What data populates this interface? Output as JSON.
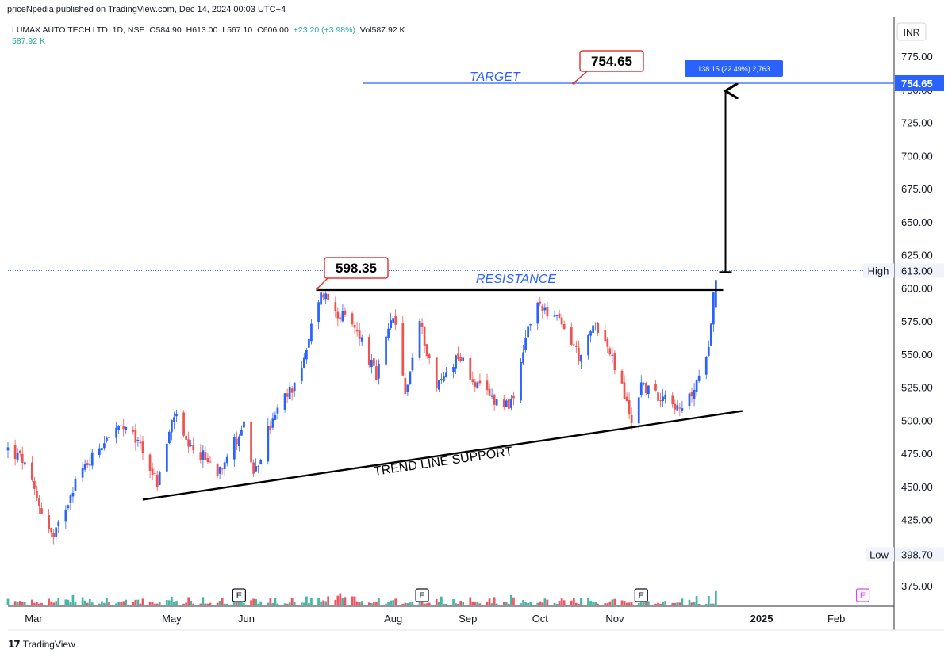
{
  "header": {
    "published": "priceNpedia published on TradingView.com, Dec 14, 2024 00:03 UTC+4"
  },
  "legend": {
    "symbol": "LUMAX AUTO TECH LTD, 1D, NSE",
    "open": "O584.90",
    "high": "H613.00",
    "low": "L567.10",
    "close": "C606.00",
    "change": "+23.20 (+3.98%)",
    "volume": "Vol587.92 K",
    "volume_value": "587.92 K"
  },
  "footer": {
    "brand": "TradingView"
  },
  "colors": {
    "up": "#22ab94",
    "down": "#f23645",
    "up_candle": "#2962ff",
    "down_candle": "#ef5350",
    "target_line": "#2962ff",
    "label_red": "#e53935"
  },
  "chart_data": {
    "type": "candlestick",
    "currency": "INR",
    "ylim": [
      360,
      790
    ],
    "y_ticks": [
      "775.00",
      "750.00",
      "725.00",
      "700.00",
      "675.00",
      "650.00",
      "625.00",
      "600.00",
      "575.00",
      "550.00",
      "525.00",
      "500.00",
      "475.00",
      "450.00",
      "425.00",
      "375.00"
    ],
    "x_ticks": [
      "Mar",
      "May",
      "Jun",
      "Aug",
      "Sep",
      "Oct",
      "Nov",
      "2025",
      "Feb"
    ],
    "price_markers": {
      "high": {
        "label": "High",
        "value": "613.00"
      },
      "low": {
        "label": "Low",
        "value": "398.70"
      },
      "target": {
        "value": "754.65"
      }
    },
    "annotations": {
      "target_label": "TARGET",
      "resistance_label": "RESISTANCE",
      "support_label": "TREND LINE SUPPORT",
      "resistance_value": "598.35",
      "target_value": "754.65",
      "measure_box": "138.15 (22.49%) 2,763",
      "earnings_marker": "E"
    },
    "resistance_level": 598.35,
    "target_level": 754.65,
    "support_line": {
      "from": {
        "date": "2024-04-19",
        "price": 440
      },
      "to": {
        "date": "2024-12-24",
        "price": 507
      }
    },
    "projection": {
      "from": 612,
      "to": 750
    },
    "waypoints": [
      {
        "d": "2024-02-23",
        "p": 478
      },
      {
        "d": "2024-02-29",
        "p": 470
      },
      {
        "d": "2024-03-05",
        "p": 445
      },
      {
        "d": "2024-03-13",
        "p": 410
      },
      {
        "d": "2024-03-22",
        "p": 455
      },
      {
        "d": "2024-04-04",
        "p": 488
      },
      {
        "d": "2024-04-10",
        "p": 494
      },
      {
        "d": "2024-04-18",
        "p": 482
      },
      {
        "d": "2024-04-25",
        "p": 452
      },
      {
        "d": "2024-05-02",
        "p": 505
      },
      {
        "d": "2024-05-08",
        "p": 477
      },
      {
        "d": "2024-05-14",
        "p": 473
      },
      {
        "d": "2024-05-20",
        "p": 462
      },
      {
        "d": "2024-05-27",
        "p": 483
      },
      {
        "d": "2024-06-01",
        "p": 500
      },
      {
        "d": "2024-06-04",
        "p": 455
      },
      {
        "d": "2024-06-10",
        "p": 492
      },
      {
        "d": "2024-06-15",
        "p": 510
      },
      {
        "d": "2024-06-20",
        "p": 525
      },
      {
        "d": "2024-06-26",
        "p": 550
      },
      {
        "d": "2024-06-30",
        "p": 590
      },
      {
        "d": "2024-07-03",
        "p": 596
      },
      {
        "d": "2024-07-09",
        "p": 582
      },
      {
        "d": "2024-07-13",
        "p": 574
      },
      {
        "d": "2024-07-18",
        "p": 565
      },
      {
        "d": "2024-07-25",
        "p": 532
      },
      {
        "d": "2024-08-01",
        "p": 580
      },
      {
        "d": "2024-08-06",
        "p": 520
      },
      {
        "d": "2024-08-12",
        "p": 574
      },
      {
        "d": "2024-08-19",
        "p": 525
      },
      {
        "d": "2024-08-28",
        "p": 550
      },
      {
        "d": "2024-09-05",
        "p": 525
      },
      {
        "d": "2024-09-13",
        "p": 515
      },
      {
        "d": "2024-09-20",
        "p": 512
      },
      {
        "d": "2024-09-26",
        "p": 570
      },
      {
        "d": "2024-10-01",
        "p": 588
      },
      {
        "d": "2024-10-08",
        "p": 576
      },
      {
        "d": "2024-10-14",
        "p": 560
      },
      {
        "d": "2024-10-18",
        "p": 545
      },
      {
        "d": "2024-10-24",
        "p": 575
      },
      {
        "d": "2024-10-29",
        "p": 555
      },
      {
        "d": "2024-11-04",
        "p": 525
      },
      {
        "d": "2024-11-08",
        "p": 498
      },
      {
        "d": "2024-11-12",
        "p": 528
      },
      {
        "d": "2024-11-18",
        "p": 518
      },
      {
        "d": "2024-11-23",
        "p": 522
      },
      {
        "d": "2024-11-28",
        "p": 505
      },
      {
        "d": "2024-12-03",
        "p": 520
      },
      {
        "d": "2024-12-06",
        "p": 530
      },
      {
        "d": "2024-12-10",
        "p": 560
      },
      {
        "d": "2024-12-12",
        "p": 595
      },
      {
        "d": "2024-12-13",
        "p": 606
      }
    ]
  }
}
